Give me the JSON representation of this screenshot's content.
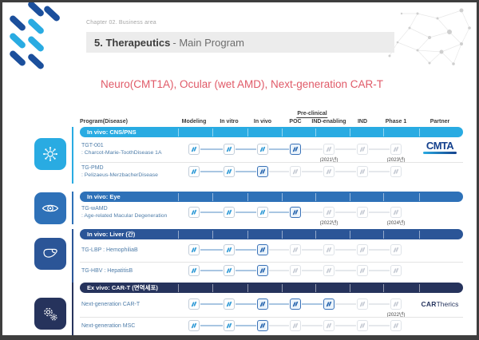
{
  "slide": {
    "chapter": "Chapter 02. Business area",
    "title_bold": "5. Therapeutics",
    "title_rest": "- Main Program",
    "subtitle": "Neuro(CMT1A), Ocular (wet AMD), Next-generation CAR-T"
  },
  "pipeline": {
    "program_header": "Program(Disease)",
    "preclinical_label": "Pre-clinical",
    "stage_columns": [
      "Modeling",
      "In vitro",
      "In vivo",
      "POC",
      "IND-enabling",
      "IND",
      "Phase 1"
    ],
    "partner_header": "Partner",
    "colors": {
      "cns": "#29abe2",
      "eye": "#2e71b8",
      "liver": "#2b5597",
      "cart": "#26335c",
      "accent_red": "#e05a68"
    },
    "sections": [
      {
        "label": "In vivo: CNS/PNS",
        "color": "#29abe2",
        "icon": "neuron-icon",
        "rows": [
          {
            "name": "TGT-001",
            "disease": ": Charcot-Marie-ToothDisease 1A",
            "stages": [
              "done",
              "done",
              "done",
              "current",
              "future",
              "future",
              "future"
            ],
            "years": {
              "4": "(2021년)",
              "6": "(2023년)"
            },
            "partner": "CMTA"
          },
          {
            "name": "TG-PMD",
            "disease": ": Pelizaeus-MerzbacherDisease",
            "stages": [
              "done",
              "done",
              "current",
              "future",
              "future",
              "future",
              "future"
            ]
          }
        ]
      },
      {
        "label": "In vivo: Eye",
        "color": "#2e71b8",
        "icon": "eye-icon",
        "rows": [
          {
            "name": "TG-wAMD",
            "disease": ": Age-related Macular Degeneration",
            "stages": [
              "done",
              "done",
              "done",
              "current",
              "future",
              "future",
              "future"
            ],
            "years": {
              "4": "(2022년)",
              "6": "(2024년)"
            }
          }
        ]
      },
      {
        "label": "In vivo: Liver (간)",
        "color": "#2b5597",
        "icon": "liver-icon",
        "rows": [
          {
            "name": "TG-LBP : HemophiliaB",
            "stages": [
              "done",
              "done",
              "current",
              "future",
              "future",
              "future",
              "future"
            ]
          },
          {
            "name": "TG-HBV : HepatitisB",
            "stages": [
              "done",
              "done",
              "current",
              "future",
              "future",
              "future",
              "future"
            ]
          }
        ]
      },
      {
        "label": "Ex vivo: CAR-T (면역세포)",
        "color": "#26335c",
        "icon": "cells-icon",
        "rows": [
          {
            "name": "Next-generation CAR-T",
            "stages": [
              "done",
              "done",
              "current",
              "current",
              "current",
              "future",
              "future"
            ],
            "years": {
              "6": "(2022년)"
            },
            "partner": "CARTherics"
          },
          {
            "name": "Next-generation MSC",
            "stages": [
              "done",
              "done",
              "current",
              "future",
              "future",
              "future",
              "future"
            ]
          }
        ]
      }
    ],
    "partners": {
      "CMTA": "CMTA",
      "CARTherics": {
        "bold": "CAR",
        "rest": "Therics"
      }
    }
  }
}
